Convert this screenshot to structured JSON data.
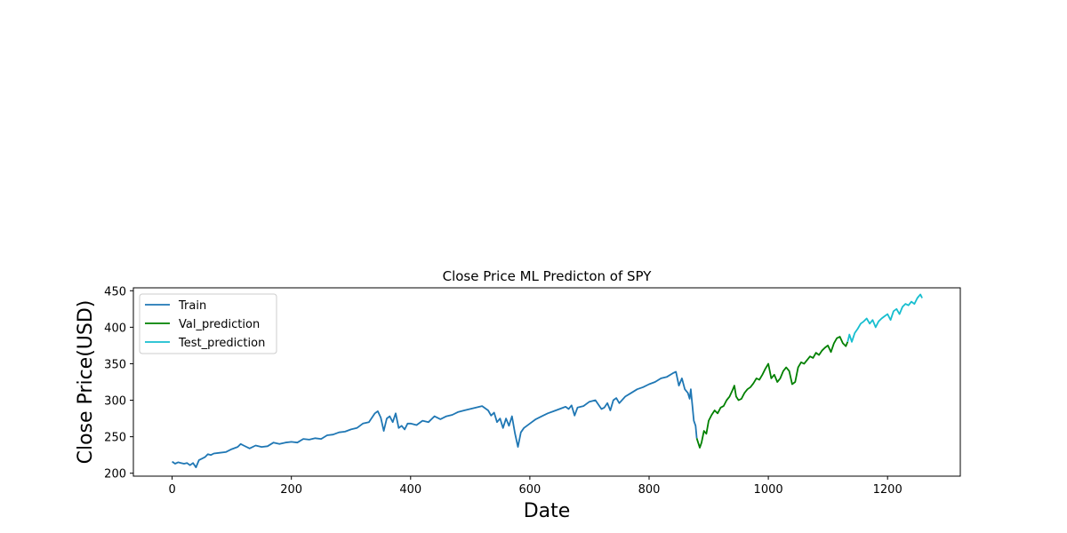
{
  "chart_data": {
    "type": "line",
    "title": "Close Price ML Predicton of SPY",
    "xlabel": "Date",
    "ylabel": "Close Price(USD)",
    "xlim": [
      -65,
      1322
    ],
    "ylim": [
      196,
      454
    ],
    "xticks": [
      0,
      200,
      400,
      600,
      800,
      1000,
      1200
    ],
    "yticks": [
      200,
      250,
      300,
      350,
      400,
      450
    ],
    "grid": false,
    "legend_position": "upper-left",
    "series": [
      {
        "name": "Train",
        "color": "#1f77b4",
        "x": [
          0,
          5,
          10,
          15,
          20,
          25,
          30,
          35,
          40,
          45,
          50,
          55,
          60,
          65,
          70,
          80,
          90,
          100,
          110,
          115,
          120,
          130,
          140,
          150,
          160,
          170,
          180,
          190,
          200,
          210,
          220,
          230,
          240,
          250,
          260,
          270,
          280,
          290,
          300,
          310,
          320,
          330,
          340,
          345,
          350,
          355,
          360,
          365,
          370,
          375,
          380,
          385,
          390,
          395,
          400,
          410,
          420,
          430,
          440,
          450,
          460,
          470,
          480,
          490,
          500,
          510,
          520,
          530,
          535,
          540,
          545,
          550,
          555,
          560,
          565,
          570,
          575,
          580,
          585,
          590,
          600,
          610,
          620,
          630,
          640,
          650,
          660,
          665,
          670,
          675,
          680,
          690,
          700,
          710,
          720,
          725,
          730,
          735,
          740,
          745,
          750,
          760,
          770,
          780,
          790,
          800,
          810,
          820,
          830,
          840,
          845,
          850,
          855,
          860,
          865,
          868,
          870,
          873,
          875,
          878,
          880
        ],
        "y": [
          216,
          213,
          215,
          214,
          213,
          214,
          211,
          214,
          208,
          218,
          220,
          222,
          226,
          225,
          227,
          228,
          229,
          233,
          236,
          240,
          238,
          234,
          238,
          236,
          237,
          242,
          240,
          242,
          243,
          242,
          247,
          246,
          248,
          247,
          252,
          253,
          256,
          257,
          260,
          262,
          268,
          270,
          282,
          285,
          276,
          258,
          275,
          278,
          270,
          282,
          262,
          265,
          260,
          268,
          268,
          266,
          272,
          270,
          278,
          274,
          278,
          280,
          284,
          286,
          288,
          290,
          292,
          286,
          279,
          283,
          270,
          275,
          262,
          275,
          265,
          278,
          255,
          236,
          256,
          262,
          268,
          274,
          278,
          282,
          285,
          288,
          291,
          288,
          293,
          279,
          290,
          292,
          298,
          300,
          288,
          290,
          296,
          286,
          300,
          303,
          296,
          305,
          310,
          315,
          318,
          322,
          325,
          330,
          332,
          337,
          339,
          320,
          330,
          315,
          310,
          302,
          315,
          290,
          272,
          265,
          248
        ]
      },
      {
        "name": "Val_prediction",
        "color": "#008000",
        "x": [
          880,
          885,
          888,
          892,
          896,
          900,
          905,
          910,
          915,
          920,
          925,
          930,
          935,
          940,
          943,
          946,
          950,
          955,
          960,
          965,
          970,
          975,
          980,
          985,
          990,
          995,
          1000,
          1005,
          1010,
          1015,
          1020,
          1025,
          1030,
          1035,
          1040,
          1045,
          1050,
          1055,
          1060,
          1065,
          1070,
          1075,
          1080,
          1085,
          1090,
          1095,
          1100,
          1105,
          1110,
          1115,
          1120,
          1125,
          1130,
          1133
        ],
        "y": [
          248,
          235,
          242,
          258,
          254,
          272,
          280,
          286,
          282,
          290,
          292,
          300,
          305,
          314,
          320,
          305,
          300,
          302,
          310,
          315,
          318,
          323,
          330,
          328,
          335,
          343,
          350,
          330,
          335,
          325,
          330,
          340,
          345,
          340,
          322,
          325,
          345,
          352,
          350,
          355,
          360,
          358,
          365,
          362,
          368,
          372,
          375,
          366,
          378,
          385,
          387,
          378,
          374,
          380
        ]
      },
      {
        "name": "Test_prediction",
        "color": "#17becf",
        "x": [
          1133,
          1136,
          1140,
          1145,
          1150,
          1155,
          1160,
          1165,
          1170,
          1175,
          1180,
          1185,
          1190,
          1195,
          1200,
          1205,
          1210,
          1215,
          1220,
          1225,
          1230,
          1235,
          1240,
          1245,
          1250,
          1255,
          1258
        ],
        "y": [
          380,
          390,
          380,
          392,
          398,
          405,
          408,
          412,
          405,
          410,
          400,
          408,
          412,
          415,
          418,
          410,
          422,
          425,
          418,
          428,
          432,
          430,
          435,
          432,
          440,
          445,
          440
        ]
      }
    ]
  }
}
